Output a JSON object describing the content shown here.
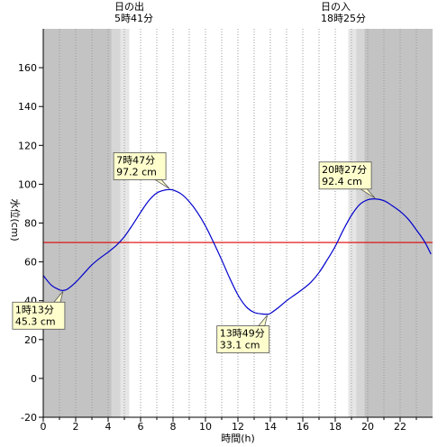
{
  "colors": {
    "night": "#c3c3c3",
    "twilight_1": "#d6d6d6",
    "twilight_2": "#e6e6e6",
    "day": "#ffffff",
    "grid": "#9a9a9a",
    "curve": "#0000cc",
    "reference_line": "#e00000",
    "annotation_fill": "#fefecd",
    "axis": "#000000"
  },
  "sun": {
    "sunrise": {
      "label": "日の出",
      "time_text": "5時41分",
      "hour": 5.683
    },
    "sunset": {
      "label": "日の入",
      "time_text": "18時25分",
      "hour": 18.417
    }
  },
  "chart_data": {
    "type": "line",
    "xlabel": "時間(h)",
    "ylabel": "水位(cm)",
    "xlim": [
      0,
      24
    ],
    "ylim": [
      -20,
      180
    ],
    "x_ticks": [
      0,
      2,
      4,
      6,
      8,
      10,
      12,
      14,
      16,
      18,
      20,
      22
    ],
    "y_ticks": [
      -20,
      0,
      20,
      40,
      60,
      80,
      100,
      120,
      140,
      160
    ],
    "x_grid": "every hour, dotted",
    "reference_line": {
      "y": 70
    },
    "shading": {
      "night": [
        [
          0,
          4.2
        ],
        [
          19.8,
          24
        ]
      ],
      "twilight": [
        [
          4.2,
          5.3
        ],
        [
          18.8,
          19.8
        ]
      ]
    },
    "series": [
      {
        "x": [
          0,
          0.5,
          1.0,
          1.217,
          1.5,
          2.0,
          2.5,
          3.0,
          3.5,
          4.0,
          4.5,
          5.0,
          5.5,
          6.0,
          6.5,
          7.0,
          7.5,
          7.783,
          8.0,
          8.5,
          9.0,
          9.5,
          10.0,
          10.5,
          11.0,
          11.5,
          12.0,
          12.5,
          13.0,
          13.5,
          13.817,
          14.0,
          14.5,
          15.0,
          15.5,
          16.0,
          16.5,
          17.0,
          17.5,
          18.0,
          18.5,
          19.0,
          19.5,
          20.0,
          20.45,
          21.0,
          21.5,
          22.0,
          22.5,
          23.0,
          23.5,
          23.9
        ],
        "y": [
          53,
          48,
          45.6,
          45.3,
          46,
          49.5,
          54,
          58.5,
          62,
          65,
          68.5,
          73,
          79,
          85.5,
          91.5,
          95.5,
          97,
          97.2,
          97,
          95,
          91,
          85.5,
          78.5,
          70,
          61,
          51.5,
          43,
          37,
          34,
          33.2,
          33.1,
          33.5,
          36.5,
          40,
          43,
          46,
          49.5,
          54.5,
          61,
          68,
          76.5,
          84,
          89.5,
          92,
          92.4,
          91.5,
          89,
          86,
          82,
          76.5,
          70.5,
          64
        ]
      }
    ],
    "annotations": [
      {
        "time": "1時13分",
        "value": "45.3 cm",
        "x": 1.217,
        "y": 45.3,
        "placement": "below-left"
      },
      {
        "time": "7時47分",
        "value": "97.2 cm",
        "x": 7.783,
        "y": 97.2,
        "placement": "above-left"
      },
      {
        "time": "13時49分",
        "value": "33.1 cm",
        "x": 13.817,
        "y": 33.1,
        "placement": "below-left"
      },
      {
        "time": "20時27分",
        "value": "92.4 cm",
        "x": 20.45,
        "y": 92.4,
        "placement": "above-left"
      }
    ]
  }
}
